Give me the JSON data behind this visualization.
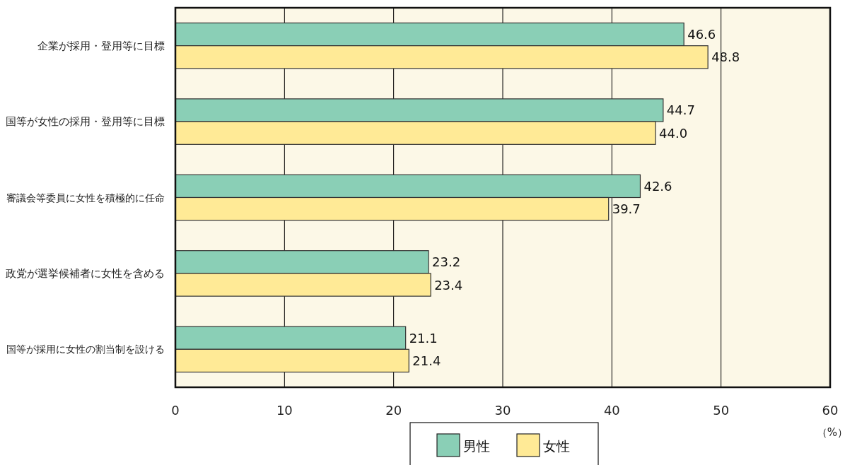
{
  "chart_data": {
    "type": "bar",
    "orientation": "horizontal",
    "categories": [
      "企業が採用・登用等に目標",
      "国等が女性の採用・登用等に目標",
      "審議会等委員に女性を積極的に任命",
      "政党が選挙候補者に女性を含める",
      "国等が採用に女性の割当制を設ける"
    ],
    "series": [
      {
        "name": "男性",
        "color": "#8acfb6",
        "values": [
          46.6,
          44.7,
          42.6,
          23.2,
          21.1
        ],
        "value_labels": [
          "46.6",
          "44.7",
          "42.6",
          "23.2",
          "21.1"
        ]
      },
      {
        "name": "女性",
        "color": "#ffea96",
        "values": [
          48.8,
          44.0,
          39.7,
          23.4,
          21.4
        ],
        "value_labels": [
          "48.8",
          "44.0",
          "39.7",
          "23.4",
          "21.4"
        ]
      }
    ],
    "xlim": [
      0,
      60
    ],
    "xticks": [
      0,
      10,
      20,
      30,
      40,
      50,
      60
    ],
    "xlabel": "（%）",
    "grid": "x",
    "legend": "bottom"
  }
}
